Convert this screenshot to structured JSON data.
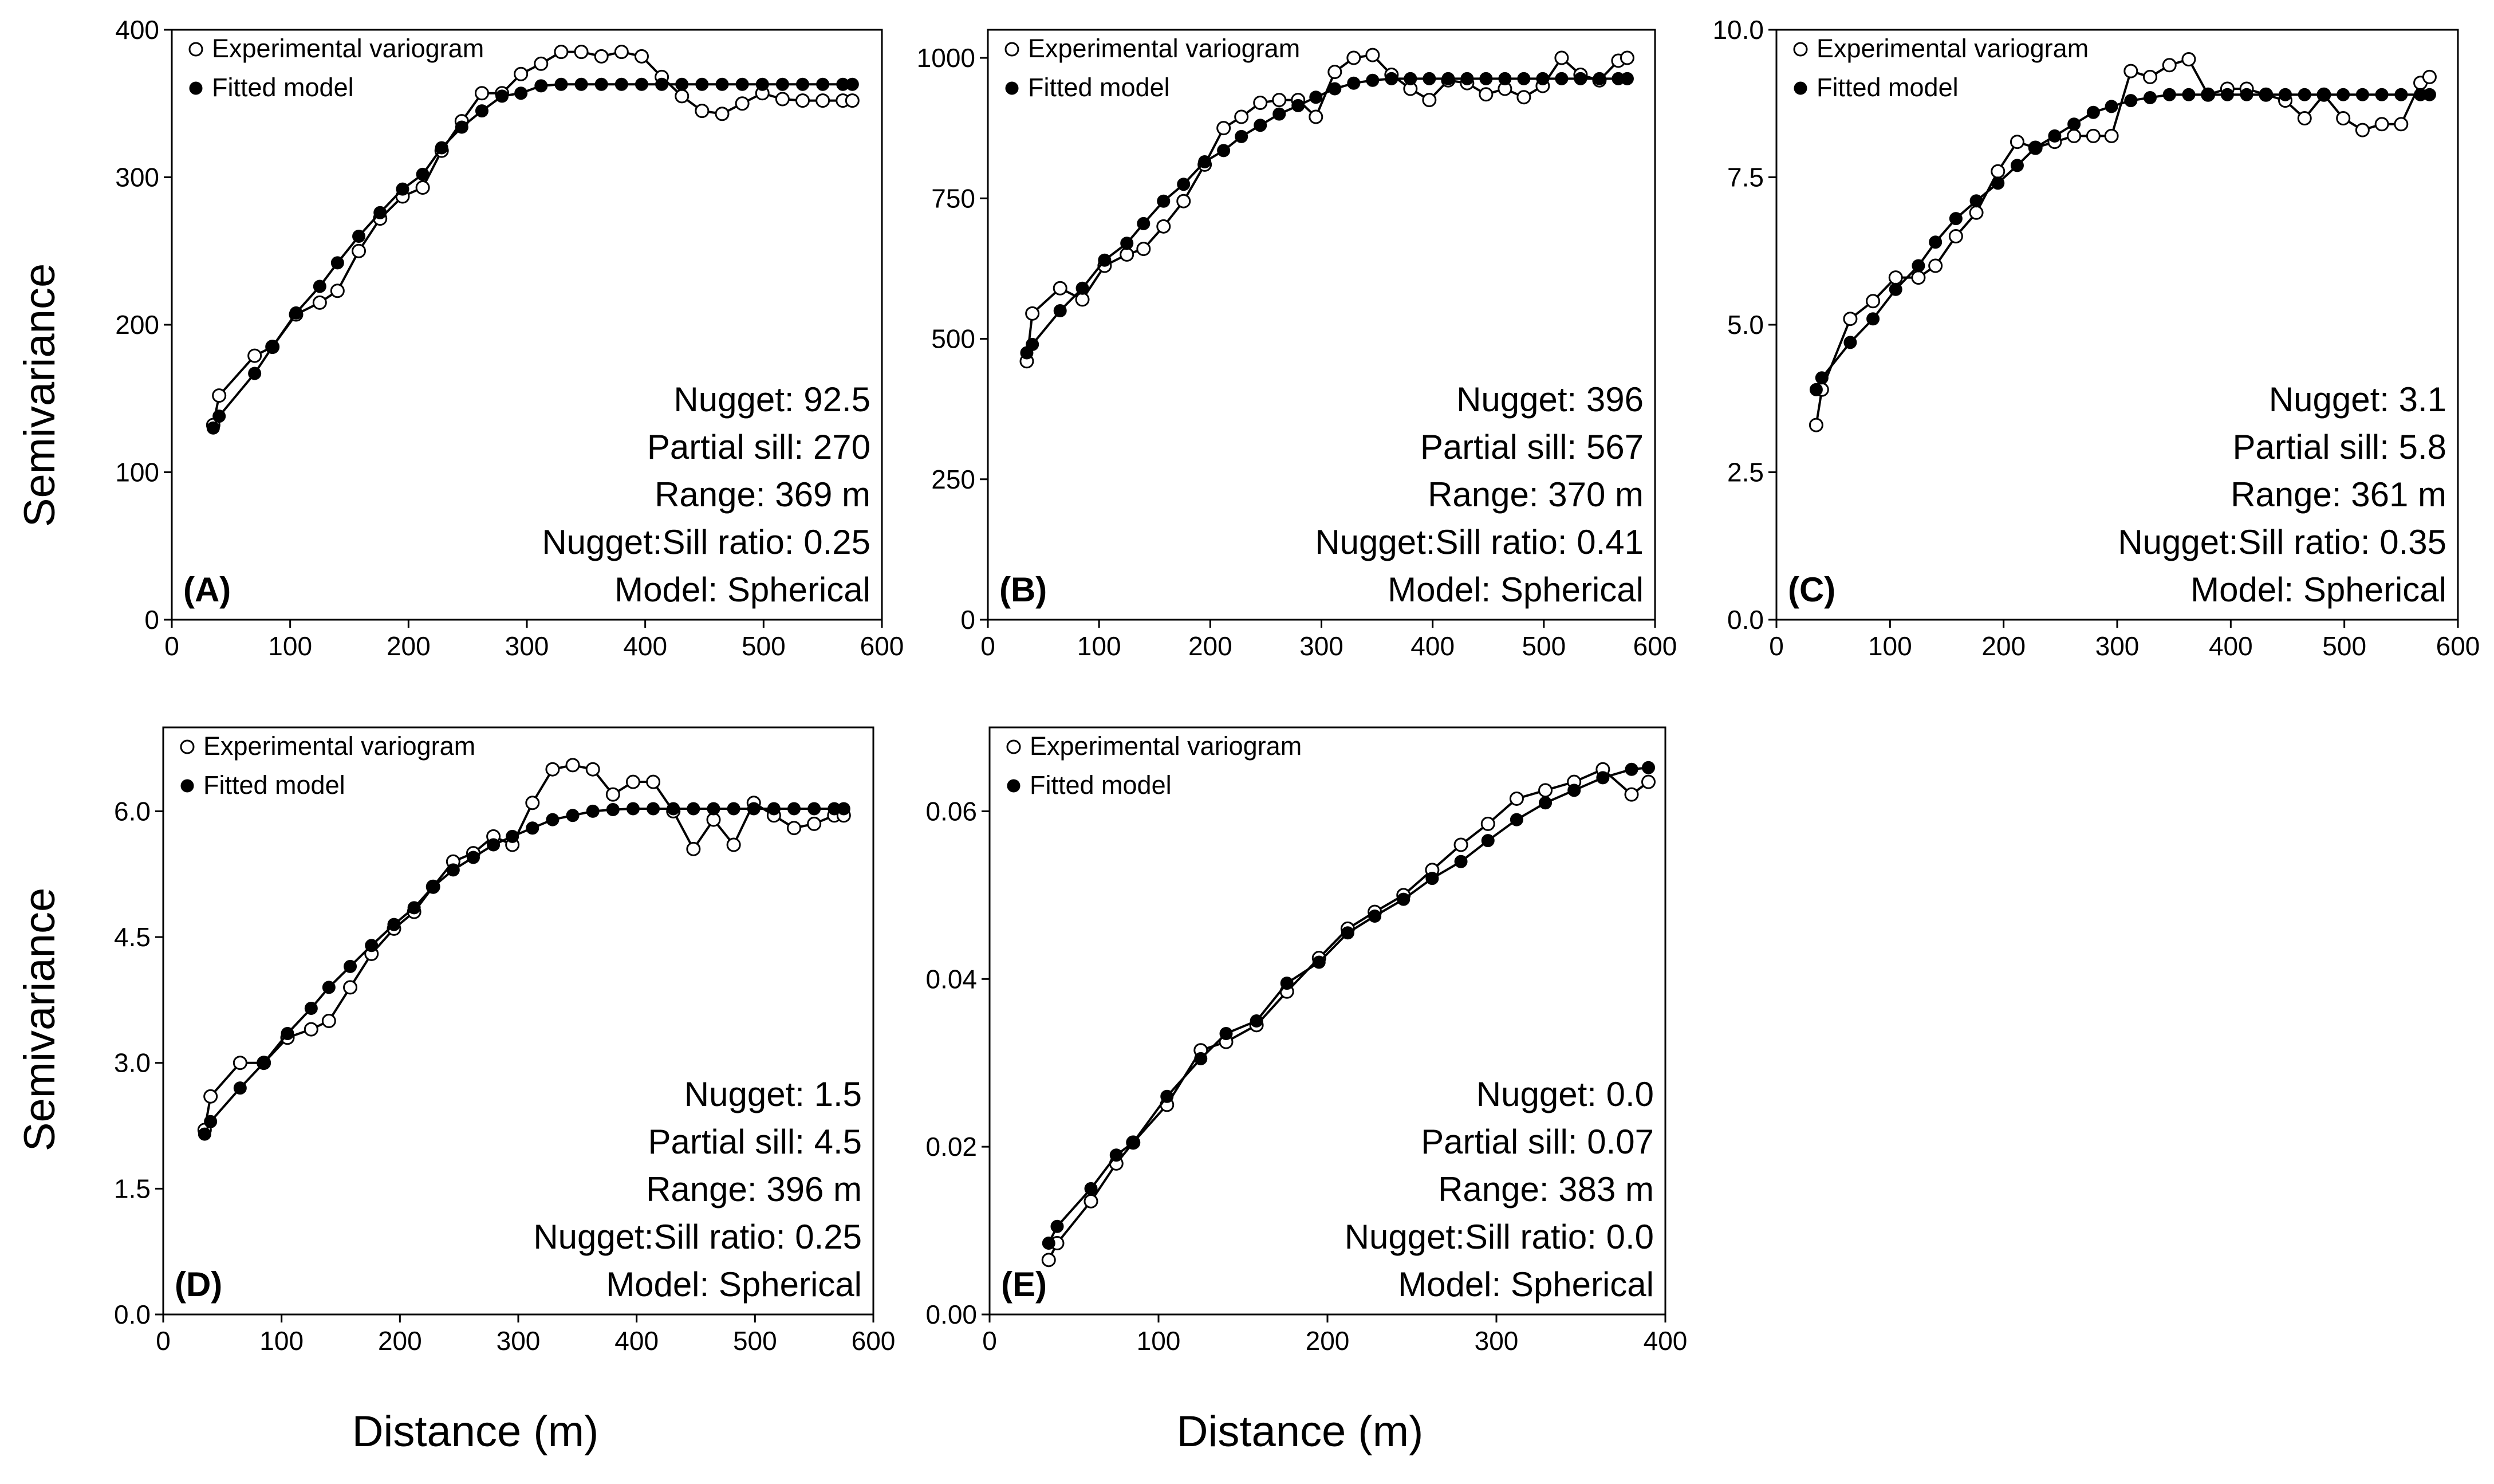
{
  "figure": {
    "ylabel": "Semivariance",
    "xlabel": "Distance (m)"
  },
  "legend": {
    "experimental": "Experimental variogram",
    "fitted": "Fitted model"
  },
  "chart_data": [
    {
      "id": "A",
      "type": "line",
      "panel_label": "(A)",
      "title": "",
      "xlabel": "Distance (m)",
      "ylabel": "Semivariance",
      "xlim": [
        0,
        600
      ],
      "ylim": [
        0,
        400
      ],
      "xticks": [
        0,
        100,
        200,
        300,
        400,
        500,
        600
      ],
      "yticks": [
        0,
        100,
        200,
        300,
        400
      ],
      "ytick_labels": [
        "0",
        "100",
        "200",
        "300",
        "400"
      ],
      "annotations": [
        "Nugget: 92.5",
        "Partial sill: 270",
        "Range: 369 m",
        "Nugget:Sill ratio: 0.25",
        "Model: Spherical"
      ],
      "model": {
        "nugget": 92.5,
        "partial_sill": 270,
        "range": 369
      },
      "series": [
        {
          "name": "Experimental variogram",
          "x": [
            35,
            40,
            70,
            85,
            105,
            125,
            140,
            158,
            176,
            195,
            212,
            228,
            245,
            262,
            279,
            295,
            312,
            329,
            346,
            363,
            380,
            397,
            414,
            431,
            448,
            465,
            482,
            499,
            516,
            533,
            550,
            567,
            575
          ],
          "y": [
            132,
            152,
            179,
            185,
            207,
            215,
            223,
            250,
            272,
            287,
            293,
            318,
            338,
            357,
            357,
            370,
            377,
            385,
            385,
            382,
            385,
            382,
            368,
            355,
            345,
            343,
            350,
            357,
            353,
            352,
            352,
            352,
            352
          ]
        },
        {
          "name": "Fitted model",
          "x": [
            35,
            40,
            70,
            85,
            105,
            125,
            140,
            158,
            176,
            195,
            212,
            228,
            245,
            262,
            279,
            295,
            312,
            329,
            346,
            363,
            380,
            397,
            414,
            431,
            448,
            465,
            482,
            499,
            516,
            533,
            550,
            567,
            575
          ],
          "y": [
            130,
            138,
            167,
            185,
            208,
            226,
            242,
            260,
            276,
            292,
            302,
            320,
            334,
            345,
            355,
            357,
            362,
            363,
            363,
            363,
            363,
            363,
            363,
            363,
            363,
            363,
            363,
            363,
            363,
            363,
            363,
            363,
            363
          ]
        }
      ]
    },
    {
      "id": "B",
      "type": "line",
      "panel_label": "(B)",
      "title": "",
      "xlabel": "Distance (m)",
      "ylabel": "Semivariance",
      "xlim": [
        0,
        600
      ],
      "ylim": [
        0,
        1050
      ],
      "xticks": [
        0,
        100,
        200,
        300,
        400,
        500,
        600
      ],
      "yticks": [
        0,
        250,
        500,
        750,
        1000
      ],
      "ytick_labels": [
        "0",
        "250",
        "500",
        "750",
        "1000"
      ],
      "annotations": [
        "Nugget: 396",
        "Partial sill: 567",
        "Range: 370 m",
        "Nugget:Sill ratio: 0.41",
        "Model: Spherical"
      ],
      "model": {
        "nugget": 396,
        "partial_sill": 567,
        "range": 370
      },
      "series": [
        {
          "name": "Experimental variogram",
          "x": [
            35,
            40,
            65,
            85,
            105,
            125,
            140,
            158,
            176,
            195,
            212,
            228,
            245,
            262,
            279,
            295,
            312,
            329,
            346,
            363,
            380,
            397,
            414,
            431,
            448,
            465,
            482,
            499,
            516,
            533,
            550,
            567,
            575
          ],
          "y": [
            460,
            545,
            590,
            570,
            630,
            650,
            660,
            700,
            745,
            810,
            875,
            895,
            920,
            925,
            925,
            895,
            975,
            1000,
            1005,
            970,
            945,
            925,
            960,
            955,
            935,
            945,
            930,
            950,
            1000,
            970,
            960,
            995,
            1000
          ]
        },
        {
          "name": "Fitted model",
          "x": [
            35,
            40,
            65,
            85,
            105,
            125,
            140,
            158,
            176,
            195,
            212,
            228,
            245,
            262,
            279,
            295,
            312,
            329,
            346,
            363,
            380,
            397,
            414,
            431,
            448,
            465,
            482,
            499,
            516,
            533,
            550,
            567,
            575
          ],
          "y": [
            475,
            490,
            550,
            590,
            640,
            670,
            705,
            745,
            775,
            815,
            835,
            860,
            880,
            900,
            915,
            930,
            945,
            955,
            960,
            963,
            963,
            963,
            963,
            963,
            963,
            963,
            963,
            963,
            963,
            963,
            963,
            963,
            963
          ]
        }
      ]
    },
    {
      "id": "C",
      "type": "line",
      "panel_label": "(C)",
      "title": "",
      "xlabel": "Distance (m)",
      "ylabel": "Semivariance",
      "xlim": [
        0,
        600
      ],
      "ylim": [
        0,
        10
      ],
      "xticks": [
        0,
        100,
        200,
        300,
        400,
        500,
        600
      ],
      "yticks": [
        0,
        2.5,
        5.0,
        7.5,
        10.0
      ],
      "ytick_labels": [
        "0.0",
        "2.5",
        "5.0",
        "7.5",
        "10.0"
      ],
      "annotations": [
        "Nugget: 3.1",
        "Partial sill: 5.8",
        "Range: 361 m",
        "Nugget:Sill ratio: 0.35",
        "Model: Spherical"
      ],
      "model": {
        "nugget": 3.1,
        "partial_sill": 5.8,
        "range": 361
      },
      "series": [
        {
          "name": "Experimental variogram",
          "x": [
            35,
            40,
            65,
            85,
            105,
            125,
            140,
            158,
            176,
            195,
            212,
            228,
            245,
            262,
            279,
            295,
            312,
            329,
            346,
            363,
            380,
            397,
            414,
            431,
            448,
            465,
            482,
            499,
            516,
            533,
            550,
            567,
            575
          ],
          "y": [
            3.3,
            3.9,
            5.1,
            5.4,
            5.8,
            5.8,
            6.0,
            6.5,
            6.9,
            7.6,
            8.1,
            8.0,
            8.1,
            8.2,
            8.2,
            8.2,
            9.3,
            9.2,
            9.4,
            9.5,
            8.9,
            9.0,
            9.0,
            8.9,
            8.8,
            8.5,
            8.9,
            8.5,
            8.3,
            8.4,
            8.4,
            9.1,
            9.2
          ]
        },
        {
          "name": "Fitted model",
          "x": [
            35,
            40,
            65,
            85,
            105,
            125,
            140,
            158,
            176,
            195,
            212,
            228,
            245,
            262,
            279,
            295,
            312,
            329,
            346,
            363,
            380,
            397,
            414,
            431,
            448,
            465,
            482,
            499,
            516,
            533,
            550,
            567,
            575
          ],
          "y": [
            3.9,
            4.1,
            4.7,
            5.1,
            5.6,
            6.0,
            6.4,
            6.8,
            7.1,
            7.4,
            7.7,
            8.0,
            8.2,
            8.4,
            8.6,
            8.7,
            8.8,
            8.85,
            8.9,
            8.9,
            8.9,
            8.9,
            8.9,
            8.9,
            8.9,
            8.9,
            8.9,
            8.9,
            8.9,
            8.9,
            8.9,
            8.9,
            8.9
          ]
        }
      ]
    },
    {
      "id": "D",
      "type": "line",
      "panel_label": "(D)",
      "title": "",
      "xlabel": "Distance (m)",
      "ylabel": "Semivariance",
      "xlim": [
        0,
        600
      ],
      "ylim": [
        0,
        7.0
      ],
      "xticks": [
        0,
        100,
        200,
        300,
        400,
        500,
        600
      ],
      "yticks": [
        0,
        1.5,
        3.0,
        4.5,
        6.0
      ],
      "ytick_labels": [
        "0.0",
        "1.5",
        "3.0",
        "4.5",
        "6.0"
      ],
      "annotations": [
        "Nugget: 1.5",
        "Partial sill: 4.5",
        "Range: 396 m",
        "Nugget:Sill ratio: 0.25",
        "Model: Spherical"
      ],
      "model": {
        "nugget": 1.5,
        "partial_sill": 4.5,
        "range": 396
      },
      "series": [
        {
          "name": "Experimental variogram",
          "x": [
            35,
            40,
            65,
            85,
            105,
            125,
            140,
            158,
            176,
            195,
            212,
            228,
            245,
            262,
            279,
            295,
            312,
            329,
            346,
            363,
            380,
            397,
            414,
            431,
            448,
            465,
            482,
            499,
            516,
            533,
            550,
            567,
            575
          ],
          "y": [
            2.2,
            2.6,
            3.0,
            3.0,
            3.3,
            3.4,
            3.5,
            3.9,
            4.3,
            4.6,
            4.8,
            5.1,
            5.4,
            5.5,
            5.7,
            5.6,
            6.1,
            6.5,
            6.55,
            6.5,
            6.2,
            6.35,
            6.35,
            6.0,
            5.55,
            5.9,
            5.6,
            6.1,
            5.95,
            5.8,
            5.85,
            5.95,
            5.95
          ]
        },
        {
          "name": "Fitted model",
          "x": [
            35,
            40,
            65,
            85,
            105,
            125,
            140,
            158,
            176,
            195,
            212,
            228,
            245,
            262,
            279,
            295,
            312,
            329,
            346,
            363,
            380,
            397,
            414,
            431,
            448,
            465,
            482,
            499,
            516,
            533,
            550,
            567,
            575
          ],
          "y": [
            2.15,
            2.3,
            2.7,
            3.0,
            3.35,
            3.65,
            3.9,
            4.15,
            4.4,
            4.65,
            4.85,
            5.1,
            5.3,
            5.45,
            5.6,
            5.7,
            5.8,
            5.9,
            5.95,
            6.0,
            6.02,
            6.03,
            6.03,
            6.03,
            6.03,
            6.03,
            6.03,
            6.03,
            6.03,
            6.03,
            6.03,
            6.03,
            6.03
          ]
        }
      ]
    },
    {
      "id": "E",
      "type": "line",
      "panel_label": "(E)",
      "title": "",
      "xlabel": "Distance (m)",
      "ylabel": "Semivariance",
      "xlim": [
        0,
        400
      ],
      "ylim": [
        0,
        0.07
      ],
      "xticks": [
        0,
        100,
        200,
        300,
        400
      ],
      "yticks": [
        0,
        0.02,
        0.04,
        0.06
      ],
      "ytick_labels": [
        "0.00",
        "0.02",
        "0.04",
        "0.06"
      ],
      "annotations": [
        "Nugget: 0.0",
        "Partial sill: 0.07",
        "Range: 383 m",
        "Nugget:Sill ratio: 0.0",
        "Model: Spherical"
      ],
      "model": {
        "nugget": 0.0,
        "partial_sill": 0.07,
        "range": 383
      },
      "series": [
        {
          "name": "Experimental variogram",
          "x": [
            35,
            40,
            60,
            75,
            85,
            105,
            125,
            140,
            158,
            176,
            195,
            212,
            228,
            245,
            262,
            279,
            295,
            312,
            329,
            346,
            363,
            380,
            390
          ],
          "y": [
            0.0065,
            0.0085,
            0.0135,
            0.018,
            0.0205,
            0.025,
            0.0315,
            0.0325,
            0.0345,
            0.0385,
            0.0425,
            0.046,
            0.048,
            0.05,
            0.053,
            0.056,
            0.0585,
            0.0615,
            0.0625,
            0.0635,
            0.065,
            0.062,
            0.0635
          ]
        },
        {
          "name": "Fitted model",
          "x": [
            35,
            40,
            60,
            75,
            85,
            105,
            125,
            140,
            158,
            176,
            195,
            212,
            228,
            245,
            262,
            279,
            295,
            312,
            329,
            346,
            363,
            380,
            390
          ],
          "y": [
            0.0085,
            0.0105,
            0.015,
            0.019,
            0.0205,
            0.026,
            0.0305,
            0.0335,
            0.035,
            0.0395,
            0.042,
            0.0455,
            0.0475,
            0.0495,
            0.052,
            0.054,
            0.0565,
            0.059,
            0.061,
            0.0625,
            0.064,
            0.065,
            0.0652
          ]
        }
      ]
    }
  ]
}
